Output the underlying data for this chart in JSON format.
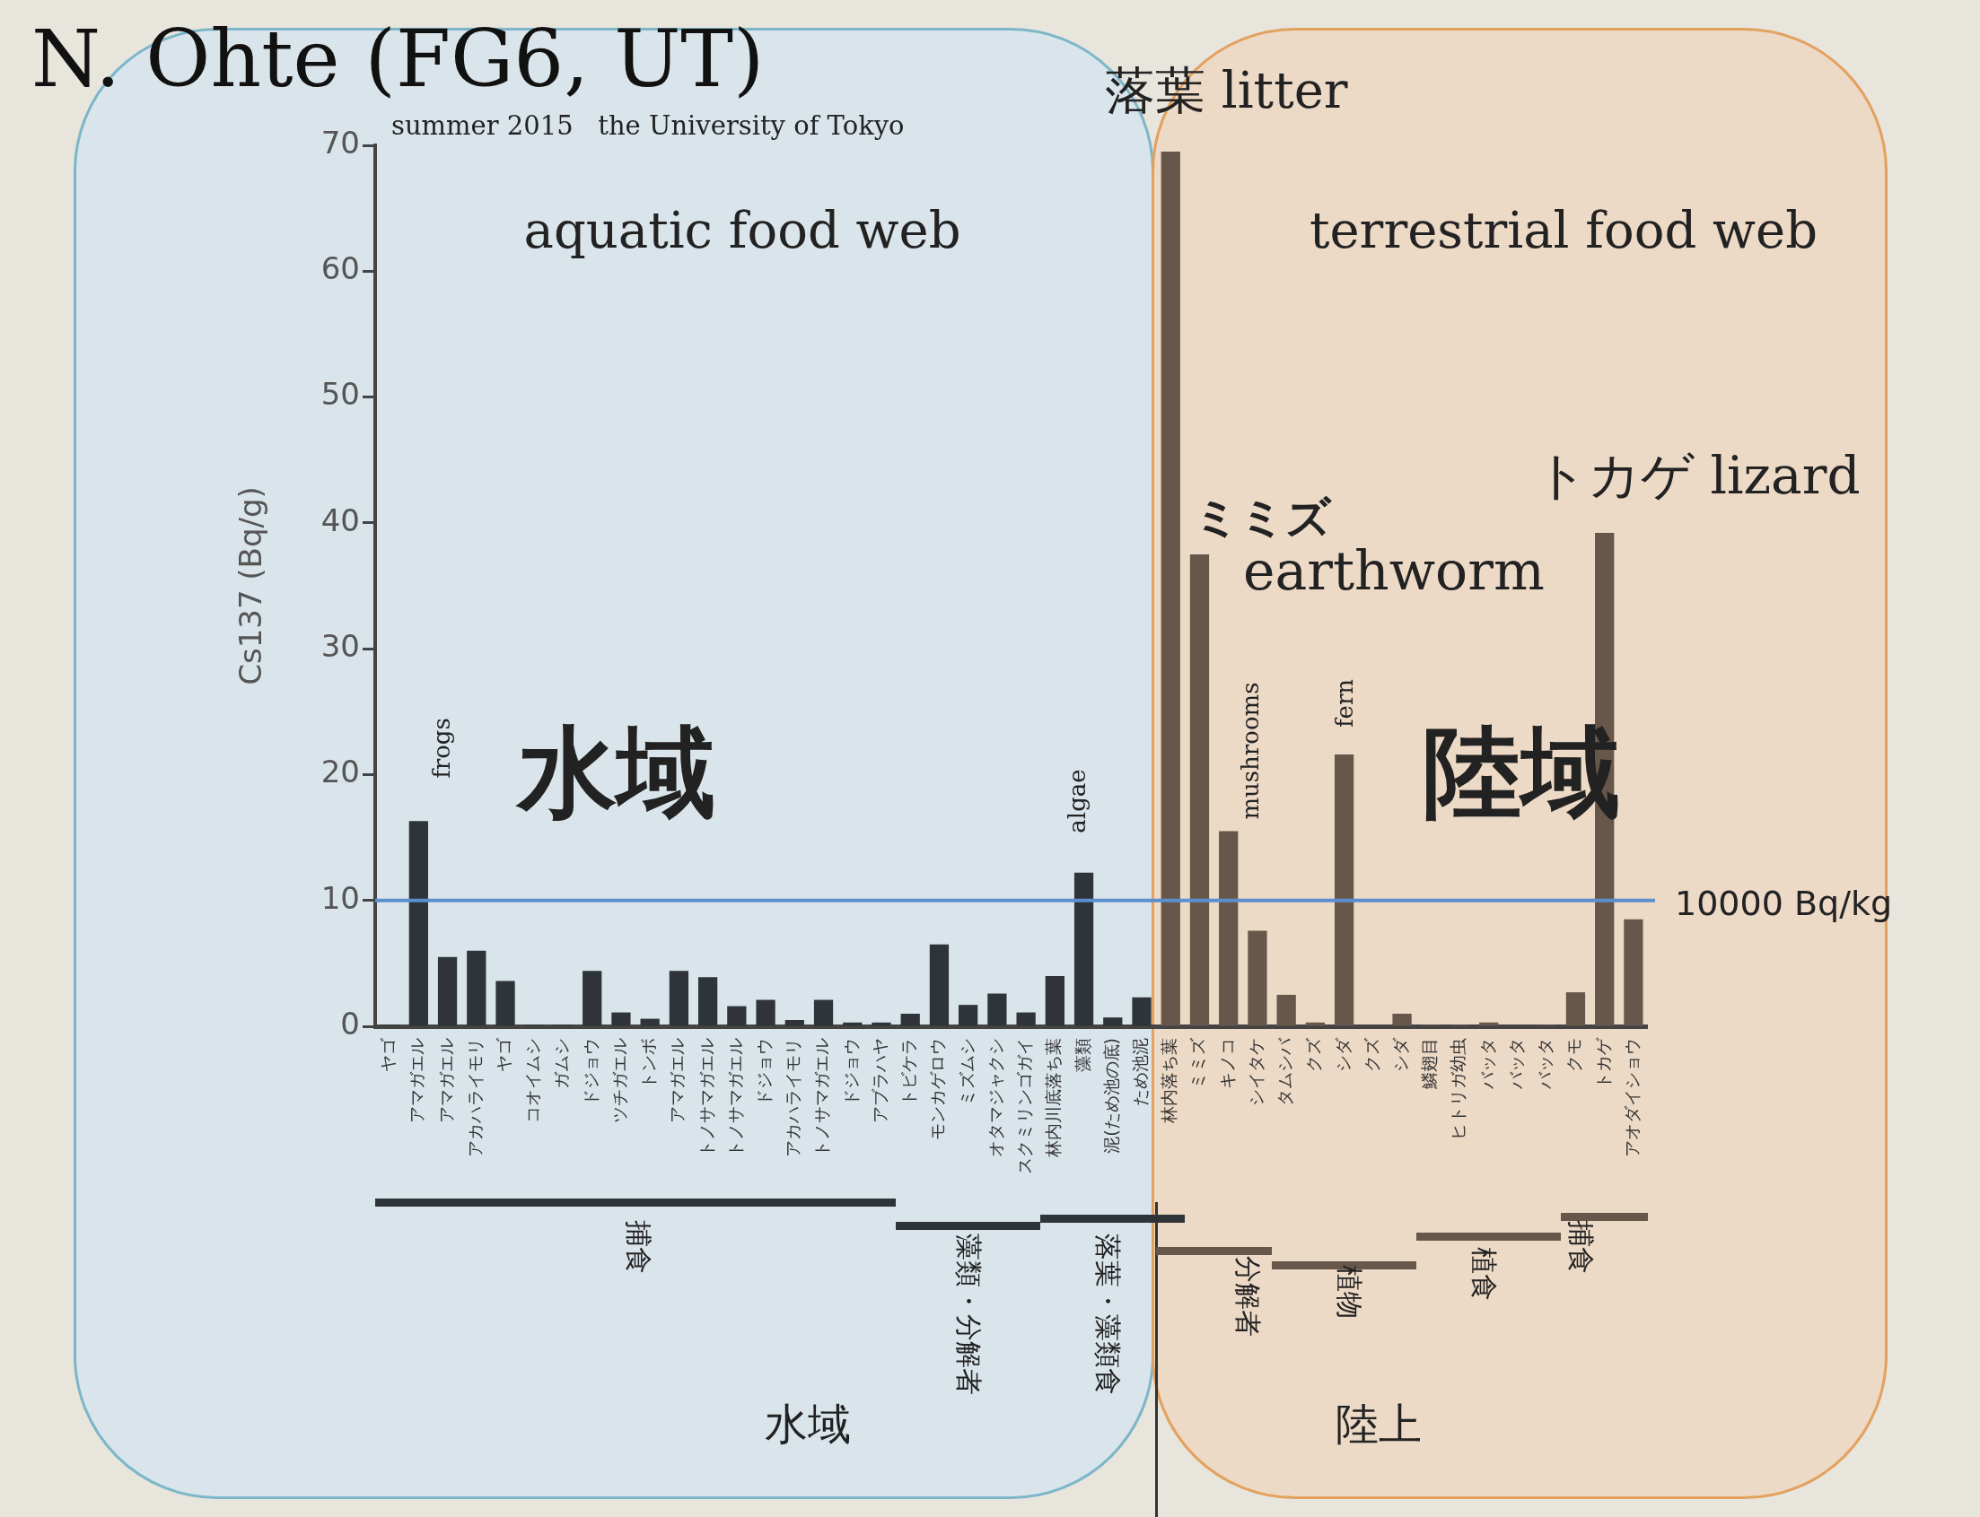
{
  "chart_data": {
    "type": "bar",
    "title": "N. Ohte (FG6, UT)",
    "subtitle": "summer 2015   the University of Tokyo",
    "ylabel": "Cs137 (Bq/g)",
    "categories": [
      "ヤゴ",
      "アマガエル",
      "アマガエル",
      "アカハライモリ",
      "ヤゴ",
      "コオイムシ",
      "ガムシ",
      "ドジョウ",
      "ツチガエル",
      "トンボ",
      "アマガエル",
      "トノサマガエル",
      "トノサマガエル",
      "ドジョウ",
      "アカハライモリ",
      "トノサマガエル",
      "ドジョウ",
      "アブラハヤ",
      "トビケラ",
      "モンカゲロウ",
      "ミズムシ",
      "オタマジャクシ",
      "スクミリンゴガイ",
      "林内川底落ち葉",
      "藻類",
      "泥(ため池の底)",
      "ため池泥",
      "林内落ち葉",
      "ミミズ",
      "キノコ",
      "シイタケ",
      "タムシバ",
      "クズ",
      "シダ",
      "クズ",
      "シダ",
      "鱗翅目",
      "ヒトリガ幼虫",
      "バッタ",
      "バッタ",
      "バッタ",
      "クモ",
      "トカゲ",
      "アオダイショウ"
    ],
    "values": [
      0.1,
      16.3,
      5.5,
      6.0,
      3.6,
      0.1,
      0.1,
      4.4,
      1.1,
      0.6,
      4.4,
      3.9,
      1.6,
      2.1,
      0.5,
      2.1,
      0.3,
      0.3,
      1.0,
      6.5,
      1.7,
      2.6,
      1.1,
      4.0,
      12.2,
      0.7,
      2.3,
      69.5,
      37.5,
      15.5,
      7.6,
      2.5,
      0.3,
      21.6,
      0,
      1.0,
      0.1,
      0.1,
      0.3,
      0,
      0.1,
      2.7,
      39.2,
      8.5
    ],
    "colors": [
      "#2f3438",
      "#2f3438",
      "#2f3438",
      "#2f3438",
      "#2f3438",
      "#2f3438",
      "#2f3438",
      "#2f3438",
      "#2f3438",
      "#2f3438",
      "#2f3438",
      "#2f3438",
      "#2f3438",
      "#2f3438",
      "#2f3438",
      "#2f3438",
      "#2f3438",
      "#2f3438",
      "#2f3438",
      "#2f3438",
      "#2f3438",
      "#2f3438",
      "#2f3438",
      "#2f3438",
      "#2f3438",
      "#2f3438",
      "#2f3438",
      "#66574a",
      "#66574a",
      "#66574a",
      "#66574a",
      "#66574a",
      "#66574a",
      "#66574a",
      "#66574a",
      "#66574a",
      "#66574a",
      "#66574a",
      "#66574a",
      "#66574a",
      "#66574a",
      "#66574a",
      "#66574a",
      "#66574a"
    ],
    "ylim": [
      0,
      70
    ],
    "yticks": [
      0,
      10,
      20,
      30,
      40,
      50,
      60,
      70
    ],
    "grid": false,
    "legend": false,
    "ref_lines": [
      {
        "axis": "y",
        "value": 10,
        "label": "10000 Bq/kg",
        "color": "#5b8fd0"
      }
    ],
    "annotations": [
      "aquatic food web",
      "terrestrial food web",
      "落葉 litter",
      "ミミズ",
      "earthworm",
      "トカゲ  lizard",
      "frogs",
      "algae",
      "mushrooms",
      "fern",
      "水域",
      "陸域",
      "捕食",
      "藻類・分解者",
      "落葉・藻類食",
      "分解者",
      "植物",
      "植食",
      "捕食",
      "水域",
      "陸上"
    ]
  }
}
